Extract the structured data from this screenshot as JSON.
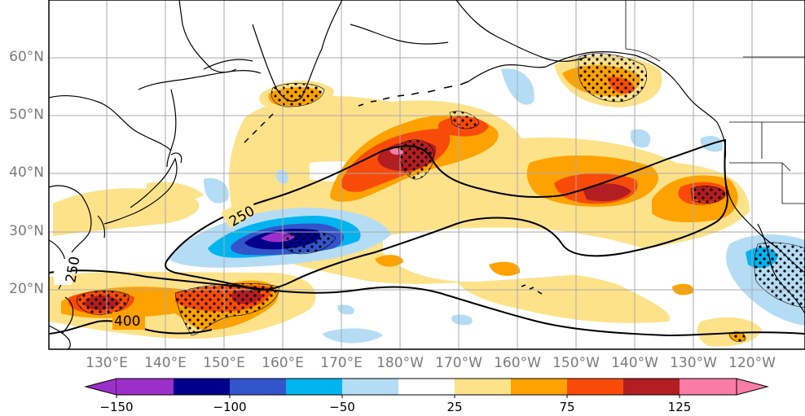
{
  "map": {
    "lat_labels": [
      "60°N",
      "50°N",
      "40°N",
      "30°N",
      "20°N"
    ],
    "lon_labels": [
      "130°E",
      "140°E",
      "150°E",
      "160°E",
      "170°E",
      "180°W",
      "170°W",
      "160°W",
      "150°W",
      "140°W",
      "130°W",
      "120°W"
    ],
    "contour_labels": [
      "250",
      "250",
      "400"
    ]
  },
  "colorbar": {
    "tick_labels": [
      "−150",
      "−100",
      "−50",
      "25",
      "75",
      "125"
    ],
    "colors": [
      "#9b30c8",
      "#00008b",
      "#3355cc",
      "#00b4f0",
      "#b4dcf5",
      "#ffffff",
      "#fde28a",
      "#fda200",
      "#f84b0a",
      "#b21e22",
      "#f87ca6"
    ]
  },
  "colors": {
    "coast": "#000000",
    "grid": "#aaaaaa",
    "label_gray": "#7a7a7a"
  }
}
